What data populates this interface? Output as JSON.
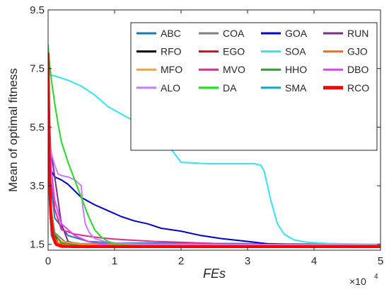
{
  "chart_data": {
    "type": "line",
    "xlabel": "FEs",
    "ylabel": "Mean of optimal fitness",
    "x_multiplier_label": "×10",
    "x_multiplier_exp": "4",
    "xlim": [
      0,
      5
    ],
    "ylim": [
      1.3,
      9.5
    ],
    "xticks": [
      0,
      1,
      2,
      3,
      4,
      5
    ],
    "xtick_labels": [
      "0",
      "1",
      "2",
      "3",
      "4",
      "5"
    ],
    "yticks": [
      1.5,
      3.5,
      5.5,
      7.5,
      9.5
    ],
    "ytick_labels": [
      "1.5",
      "3.5",
      "5.5",
      "7.5",
      "9.5"
    ],
    "grid": false,
    "legend_position": "top-right",
    "series": [
      {
        "name": "ABC",
        "color": "#1f77b4",
        "width": 2,
        "x": [
          0,
          0.02,
          0.1,
          0.3,
          0.6,
          1.0,
          5
        ],
        "y": [
          5.6,
          4.0,
          2.4,
          1.8,
          1.6,
          1.55,
          1.5
        ]
      },
      {
        "name": "COA",
        "color": "#808080",
        "width": 2,
        "x": [
          0,
          0.03,
          0.1,
          0.25,
          0.5,
          5
        ],
        "y": [
          5.0,
          3.0,
          1.9,
          1.6,
          1.52,
          1.5
        ]
      },
      {
        "name": "GOA",
        "color": "#0000cd",
        "width": 2,
        "x": [
          0,
          0.05,
          0.1,
          0.2,
          0.3,
          0.5,
          0.7,
          0.9,
          1.1,
          1.3,
          1.5,
          1.7,
          2.0,
          2.3,
          2.6,
          3.0,
          3.3,
          3.6,
          4.0,
          4.5,
          5.0
        ],
        "y": [
          4.4,
          4.0,
          3.8,
          3.7,
          3.55,
          3.1,
          2.85,
          2.65,
          2.45,
          2.3,
          2.2,
          2.05,
          1.95,
          1.8,
          1.7,
          1.6,
          1.52,
          1.49,
          1.48,
          1.47,
          1.47
        ]
      },
      {
        "name": "RUN",
        "color": "#7b2d8e",
        "width": 2,
        "x": [
          0,
          0.05,
          0.1,
          0.15,
          0.2,
          0.3,
          0.5,
          5
        ],
        "y": [
          5.2,
          4.6,
          3.8,
          3.0,
          2.2,
          1.6,
          1.45,
          1.43
        ]
      },
      {
        "name": "RFO",
        "color": "#000000",
        "width": 2,
        "x": [
          0,
          0.02,
          0.06,
          0.15,
          0.3,
          5
        ],
        "y": [
          7.0,
          4.0,
          2.0,
          1.55,
          1.45,
          1.44
        ]
      },
      {
        "name": "EGO",
        "color": "#c8102e",
        "width": 2,
        "x": [
          0,
          0.02,
          0.05,
          0.12,
          0.3,
          5
        ],
        "y": [
          6.0,
          3.0,
          1.8,
          1.52,
          1.46,
          1.45
        ]
      },
      {
        "name": "SOA",
        "color": "#33e5f0",
        "width": 2,
        "x": [
          0,
          0.1,
          0.3,
          0.5,
          0.7,
          0.9,
          1.1,
          1.3,
          1.5,
          1.6,
          1.7,
          1.8,
          2.0,
          2.4,
          2.8,
          3.1,
          3.2,
          3.25,
          3.35,
          3.45,
          3.55,
          3.7,
          3.9,
          4.2,
          4.6,
          5.0
        ],
        "y": [
          7.3,
          7.25,
          7.1,
          6.9,
          6.6,
          6.2,
          5.95,
          5.7,
          5.5,
          5.3,
          5.15,
          4.9,
          4.3,
          4.25,
          4.25,
          4.25,
          4.2,
          4.0,
          3.0,
          2.2,
          1.85,
          1.65,
          1.57,
          1.53,
          1.51,
          1.5
        ]
      },
      {
        "name": "GJO",
        "color": "#ff6a13",
        "width": 2,
        "x": [
          0,
          0.02,
          0.06,
          0.15,
          0.3,
          5
        ],
        "y": [
          6.5,
          3.5,
          1.9,
          1.55,
          1.46,
          1.45
        ]
      },
      {
        "name": "MFO",
        "color": "#f5a623",
        "width": 2,
        "x": [
          0,
          0.03,
          0.08,
          0.2,
          0.5,
          5
        ],
        "y": [
          6.0,
          3.2,
          1.9,
          1.6,
          1.5,
          1.48
        ]
      },
      {
        "name": "MVO",
        "color": "#e6288a",
        "width": 2,
        "x": [
          0,
          0.05,
          0.1,
          0.2,
          0.4,
          0.6,
          0.8,
          1.0,
          1.2,
          1.6,
          2.0,
          2.5,
          3.0,
          3.5,
          5.0
        ],
        "y": [
          7.0,
          4.0,
          2.7,
          2.0,
          1.85,
          1.78,
          1.72,
          1.68,
          1.65,
          1.6,
          1.57,
          1.53,
          1.5,
          1.48,
          1.47
        ]
      },
      {
        "name": "HHO",
        "color": "#2ca02c",
        "width": 2,
        "x": [
          0,
          0.03,
          0.08,
          0.2,
          0.5,
          5
        ],
        "y": [
          6.0,
          3.0,
          1.9,
          1.55,
          1.46,
          1.45
        ]
      },
      {
        "name": "DBO",
        "color": "#e040fb",
        "width": 2,
        "x": [
          0,
          0.05,
          0.1,
          0.2,
          0.4,
          0.6,
          0.8,
          1.0,
          1.5,
          5
        ],
        "y": [
          6.5,
          4.0,
          3.0,
          2.2,
          1.8,
          1.6,
          1.5,
          1.47,
          1.46,
          1.45
        ]
      },
      {
        "name": "ALO",
        "color": "#c77dff",
        "width": 2,
        "x": [
          0,
          0.05,
          0.1,
          0.15,
          0.2,
          0.3,
          0.4,
          0.5,
          0.52,
          0.56,
          0.62,
          0.7,
          0.85,
          1.0,
          1.5,
          5.0
        ],
        "y": [
          5.0,
          4.6,
          4.2,
          3.9,
          3.85,
          3.8,
          3.7,
          3.5,
          2.8,
          2.2,
          1.9,
          1.7,
          1.6,
          1.55,
          1.5,
          1.48
        ]
      },
      {
        "name": "DA",
        "color": "#22dd22",
        "width": 2,
        "x": [
          0,
          0.02,
          0.05,
          0.1,
          0.15,
          0.2,
          0.3,
          0.4,
          0.5,
          0.6,
          0.7,
          0.8,
          0.9,
          1.0,
          1.2,
          1.5,
          2.0,
          5.0
        ],
        "y": [
          8.3,
          7.7,
          7.1,
          6.3,
          5.6,
          5.0,
          4.3,
          3.7,
          3.1,
          2.5,
          2.0,
          1.75,
          1.6,
          1.52,
          1.48,
          1.47,
          1.46,
          1.46
        ]
      },
      {
        "name": "SMA",
        "color": "#1ca3c7",
        "width": 2,
        "x": [
          0,
          0.02,
          0.05,
          0.1,
          0.2,
          5
        ],
        "y": [
          5.5,
          3.0,
          1.8,
          1.52,
          1.45,
          1.44
        ]
      },
      {
        "name": "RCO",
        "color": "#ff0000",
        "width": 4,
        "x": [
          0,
          0.01,
          0.02,
          0.04,
          0.07,
          0.12,
          0.2,
          0.4,
          5.0
        ],
        "y": [
          8.0,
          6.0,
          4.0,
          2.5,
          1.8,
          1.5,
          1.43,
          1.42,
          1.42
        ]
      }
    ]
  }
}
